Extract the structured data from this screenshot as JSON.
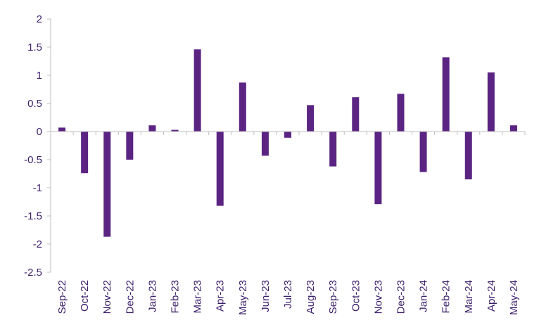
{
  "chart_data": {
    "type": "bar",
    "title": "",
    "xlabel": "",
    "ylabel": "",
    "categories": [
      "Sep-22",
      "Oct-22",
      "Nov-22",
      "Dec-22",
      "Jan-23",
      "Feb-23",
      "Mar-23",
      "Apr-23",
      "May-23",
      "Jun-23",
      "Jul-23",
      "Aug-23",
      "Sep-23",
      "Oct-23",
      "Nov-23",
      "Dec-23",
      "Jan-24",
      "Feb-24",
      "Mar-24",
      "Apr-24",
      "May-24"
    ],
    "values": [
      0.07,
      -0.74,
      -1.87,
      -0.5,
      0.11,
      0.03,
      1.46,
      -1.32,
      0.87,
      -0.43,
      -0.11,
      0.47,
      -0.62,
      0.61,
      -1.29,
      0.67,
      -0.72,
      1.32,
      -0.85,
      1.05,
      0.11
    ],
    "ylim": [
      -2.5,
      2
    ],
    "yticks": [
      2,
      1.5,
      1,
      0.5,
      0,
      -0.5,
      -1,
      -1.5,
      -2,
      -2.5
    ],
    "ytick_labels": [
      "2",
      "1.5",
      "1",
      "0.5",
      "0",
      "-0.5",
      "-1",
      "-1.5",
      "-2",
      "-2.5"
    ],
    "grid": false,
    "legend": "none",
    "bar_color": "#5b2483",
    "text_color": "#3b1f6b"
  }
}
